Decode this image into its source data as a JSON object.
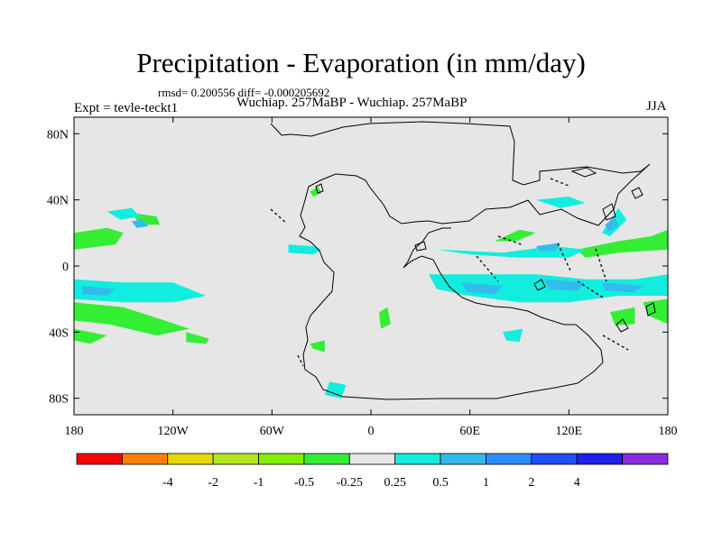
{
  "title": "Precipitation - Evaporation (in mm/day)",
  "stats": "rmsd= 0.200556 diff= -0.000205692",
  "experiment_label": "Expt = tevle-teckt1",
  "subtitle": "Wuchiap. 257MaBP - Wuchiap. 257MaBP",
  "season": "JJA",
  "chart_data": {
    "type": "heatmap",
    "title": "Precipitation - Evaporation (in mm/day)",
    "xlabel": "",
    "ylabel": "",
    "xlim": [
      -180,
      180
    ],
    "ylim": [
      -90,
      90
    ],
    "x_ticks": [
      {
        "value": -180,
        "label": "180"
      },
      {
        "value": -120,
        "label": "120W"
      },
      {
        "value": -60,
        "label": "60W"
      },
      {
        "value": 0,
        "label": "0"
      },
      {
        "value": 60,
        "label": "60E"
      },
      {
        "value": 120,
        "label": "120E"
      },
      {
        "value": 180,
        "label": "180"
      }
    ],
    "y_ticks": [
      {
        "value": 80,
        "label": "80N"
      },
      {
        "value": 40,
        "label": "40N"
      },
      {
        "value": 0,
        "label": "0"
      },
      {
        "value": -40,
        "label": "40S"
      },
      {
        "value": -80,
        "label": "80S"
      }
    ],
    "colorbar": {
      "colors": [
        "#ff0000",
        "#ff8000",
        "#e6d800",
        "#b4e61e",
        "#80f000",
        "#33ee33",
        "#e6e6e6",
        "#11eedd",
        "#33bbee",
        "#2a8cff",
        "#1e50ff",
        "#2020f0",
        "#8a2be2"
      ],
      "labels": [
        "-4",
        "-2",
        "-1",
        "-0.5",
        "-0.25",
        "0.25",
        "0.5",
        "1",
        "2",
        "4"
      ]
    },
    "background_color": "#e6e6e6",
    "regions": [
      {
        "level": -0.25,
        "polygon": [
          [
            -180,
            20
          ],
          [
            -160,
            23
          ],
          [
            -150,
            20
          ],
          [
            -155,
            13
          ],
          [
            -180,
            10
          ]
        ]
      },
      {
        "level": -0.25,
        "polygon": [
          [
            -180,
            -22
          ],
          [
            -150,
            -25
          ],
          [
            -125,
            -33
          ],
          [
            -110,
            -38
          ],
          [
            -130,
            -42
          ],
          [
            -160,
            -35
          ],
          [
            -180,
            -33
          ]
        ]
      },
      {
        "level": -0.25,
        "polygon": [
          [
            -180,
            -38
          ],
          [
            -160,
            -42
          ],
          [
            -170,
            -47
          ],
          [
            -180,
            -45
          ]
        ]
      },
      {
        "level": -0.25,
        "polygon": [
          [
            -145,
            32
          ],
          [
            -130,
            30
          ],
          [
            -128,
            25
          ],
          [
            -140,
            25
          ]
        ]
      },
      {
        "level": -0.25,
        "polygon": [
          [
            -112,
            -40
          ],
          [
            -98,
            -44
          ],
          [
            -100,
            -47
          ],
          [
            -112,
            -46
          ]
        ]
      },
      {
        "level": -0.25,
        "polygon": [
          [
            -37,
            45
          ],
          [
            -32,
            48
          ],
          [
            -30,
            44
          ],
          [
            -35,
            42
          ]
        ]
      },
      {
        "level": -0.25,
        "polygon": [
          [
            -37,
            -47
          ],
          [
            -28,
            -45
          ],
          [
            -28,
            -52
          ],
          [
            -35,
            -50
          ]
        ]
      },
      {
        "level": -0.25,
        "polygon": [
          [
            5,
            -28
          ],
          [
            10,
            -25
          ],
          [
            12,
            -35
          ],
          [
            6,
            -38
          ]
        ]
      },
      {
        "level": -0.25,
        "polygon": [
          [
            50,
            -12
          ],
          [
            60,
            -10
          ],
          [
            58,
            -18
          ],
          [
            50,
            -16
          ]
        ]
      },
      {
        "level": -0.25,
        "polygon": [
          [
            75,
            15
          ],
          [
            90,
            22
          ],
          [
            100,
            20
          ],
          [
            88,
            15
          ]
        ]
      },
      {
        "level": -0.25,
        "polygon": [
          [
            125,
            10
          ],
          [
            150,
            15
          ],
          [
            170,
            18
          ],
          [
            180,
            22
          ],
          [
            180,
            10
          ],
          [
            150,
            8
          ],
          [
            130,
            5
          ]
        ]
      },
      {
        "level": -0.25,
        "polygon": [
          [
            145,
            -28
          ],
          [
            160,
            -25
          ],
          [
            160,
            -35
          ],
          [
            148,
            -36
          ]
        ]
      },
      {
        "level": -0.25,
        "polygon": [
          [
            165,
            -22
          ],
          [
            180,
            -20
          ],
          [
            180,
            -35
          ],
          [
            168,
            -30
          ]
        ]
      },
      {
        "level": 0.25,
        "polygon": [
          [
            -180,
            -8
          ],
          [
            -150,
            -10
          ],
          [
            -120,
            -10
          ],
          [
            -100,
            -18
          ],
          [
            -120,
            -22
          ],
          [
            -150,
            -22
          ],
          [
            -180,
            -20
          ]
        ]
      },
      {
        "level": 0.25,
        "polygon": [
          [
            -160,
            33
          ],
          [
            -145,
            35
          ],
          [
            -140,
            30
          ],
          [
            -152,
            28
          ]
        ]
      },
      {
        "level": 0.25,
        "polygon": [
          [
            -50,
            13
          ],
          [
            -35,
            12
          ],
          [
            -30,
            10
          ],
          [
            -35,
            7
          ],
          [
            -50,
            8
          ]
        ]
      },
      {
        "level": 0.25,
        "polygon": [
          [
            -25,
            -70
          ],
          [
            -15,
            -72
          ],
          [
            -18,
            -80
          ],
          [
            -28,
            -78
          ]
        ]
      },
      {
        "level": 0.25,
        "polygon": [
          [
            40,
            10
          ],
          [
            80,
            8
          ],
          [
            110,
            12
          ],
          [
            130,
            10
          ],
          [
            120,
            5
          ],
          [
            90,
            5
          ],
          [
            60,
            7
          ]
        ]
      },
      {
        "level": 0.25,
        "polygon": [
          [
            35,
            -5
          ],
          [
            70,
            -5
          ],
          [
            100,
            -5
          ],
          [
            130,
            -8
          ],
          [
            160,
            -8
          ],
          [
            180,
            -5
          ],
          [
            180,
            -18
          ],
          [
            150,
            -18
          ],
          [
            120,
            -22
          ],
          [
            90,
            -22
          ],
          [
            60,
            -18
          ],
          [
            40,
            -14
          ]
        ]
      },
      {
        "level": 0.25,
        "polygon": [
          [
            100,
            40
          ],
          [
            120,
            42
          ],
          [
            130,
            38
          ],
          [
            115,
            35
          ]
        ]
      },
      {
        "level": 0.25,
        "polygon": [
          [
            140,
            20
          ],
          [
            150,
            35
          ],
          [
            155,
            28
          ],
          [
            145,
            18
          ]
        ]
      },
      {
        "level": 0.25,
        "polygon": [
          [
            80,
            -40
          ],
          [
            92,
            -38
          ],
          [
            90,
            -46
          ],
          [
            82,
            -45
          ]
        ]
      },
      {
        "level": 0.5,
        "polygon": [
          [
            -145,
            27
          ],
          [
            -138,
            28
          ],
          [
            -135,
            24
          ],
          [
            -142,
            23
          ]
        ]
      },
      {
        "level": 0.5,
        "polygon": [
          [
            -175,
            -12
          ],
          [
            -155,
            -14
          ],
          [
            -160,
            -18
          ],
          [
            -175,
            -17
          ]
        ]
      },
      {
        "level": 0.5,
        "polygon": [
          [
            55,
            -10
          ],
          [
            80,
            -12
          ],
          [
            75,
            -17
          ],
          [
            58,
            -16
          ]
        ]
      },
      {
        "level": 0.5,
        "polygon": [
          [
            105,
            -8
          ],
          [
            130,
            -10
          ],
          [
            125,
            -15
          ],
          [
            108,
            -14
          ]
        ]
      },
      {
        "level": 0.5,
        "polygon": [
          [
            140,
            -10
          ],
          [
            165,
            -12
          ],
          [
            160,
            -16
          ],
          [
            142,
            -15
          ]
        ]
      },
      {
        "level": 0.5,
        "polygon": [
          [
            100,
            12
          ],
          [
            115,
            14
          ],
          [
            112,
            9
          ],
          [
            102,
            9
          ]
        ]
      },
      {
        "level": 0.5,
        "polygon": [
          [
            142,
            25
          ],
          [
            148,
            30
          ],
          [
            150,
            24
          ],
          [
            144,
            21
          ]
        ]
      }
    ]
  }
}
